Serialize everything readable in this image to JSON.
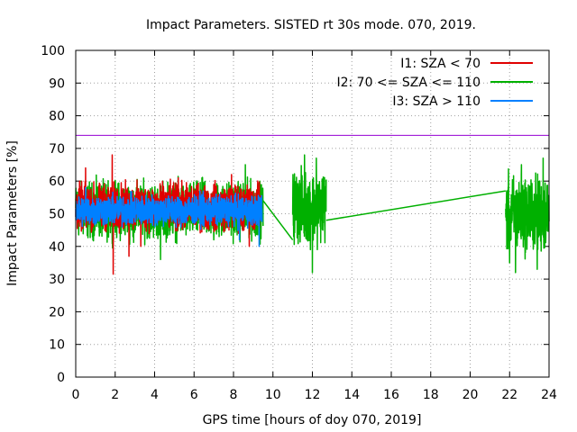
{
  "chart_data": {
    "type": "line",
    "title": "Impact Parameters. SISTED rt 30s mode. 070, 2019.",
    "xlabel": "GPS time [hours of doy 070, 2019]",
    "ylabel": "Impact Parameters [%]",
    "xlim": [
      0,
      24
    ],
    "ylim": [
      0,
      100
    ],
    "x_ticks": [
      0,
      2,
      4,
      6,
      8,
      10,
      12,
      14,
      16,
      18,
      20,
      22,
      24
    ],
    "y_ticks": [
      0,
      10,
      20,
      30,
      40,
      50,
      60,
      70,
      80,
      90,
      100
    ],
    "grid": true,
    "legend_position": "top-right",
    "reference_line": {
      "y": 74,
      "color": "#9400d3"
    },
    "series": [
      {
        "name": "I1: SZA < 70",
        "color": "#e00000",
        "segments": [
          {
            "x_start": 0.0,
            "x_end": 9.4,
            "center": 52,
            "spread": 9,
            "spikes": [
              [
                1.9,
                31.5
              ],
              [
                1.85,
                68
              ],
              [
                2.7,
                37
              ],
              [
                7.9,
                62
              ],
              [
                0.5,
                64
              ],
              [
                5.2,
                61
              ],
              [
                3.3,
                40
              ],
              [
                8.8,
                40
              ]
            ]
          }
        ]
      },
      {
        "name": "I2: 70 <= SZA <= 110",
        "color": "#00b000",
        "segments": [
          {
            "x_start": 0.0,
            "x_end": 9.5,
            "center": 51,
            "spread": 11,
            "spikes": [
              [
                4.3,
                36
              ],
              [
                6.4,
                61
              ],
              [
                8.6,
                65
              ],
              [
                2.9,
                43
              ],
              [
                7.0,
                42
              ]
            ]
          },
          {
            "x_start": 9.5,
            "x_end": 11.0,
            "linear": [
              [
                9.5,
                54
              ],
              [
                11.0,
                42
              ]
            ]
          },
          {
            "x_start": 11.0,
            "x_end": 12.7,
            "center": 52,
            "spread": 14,
            "spikes": [
              [
                11.6,
                68
              ],
              [
                12.0,
                32
              ],
              [
                12.2,
                67
              ],
              [
                11.2,
                58
              ]
            ]
          },
          {
            "x_start": 12.7,
            "x_end": 21.8,
            "linear": [
              [
                12.7,
                48
              ],
              [
                21.8,
                57
              ]
            ]
          },
          {
            "x_start": 21.8,
            "x_end": 24.0,
            "center": 50,
            "spread": 15,
            "spikes": [
              [
                22.0,
                35
              ],
              [
                22.3,
                32
              ],
              [
                23.7,
                67
              ],
              [
                23.4,
                33
              ],
              [
                22.6,
                65
              ]
            ]
          }
        ]
      },
      {
        "name": "I3: SZA > 110",
        "color": "#0080ff",
        "segments": [
          {
            "x_start": 0.0,
            "x_end": 9.45,
            "center": 51,
            "spread": 6,
            "spikes": [
              [
                8.3,
                42
              ],
              [
                0.5,
                58
              ],
              [
                9.3,
                40
              ]
            ]
          }
        ]
      }
    ]
  }
}
